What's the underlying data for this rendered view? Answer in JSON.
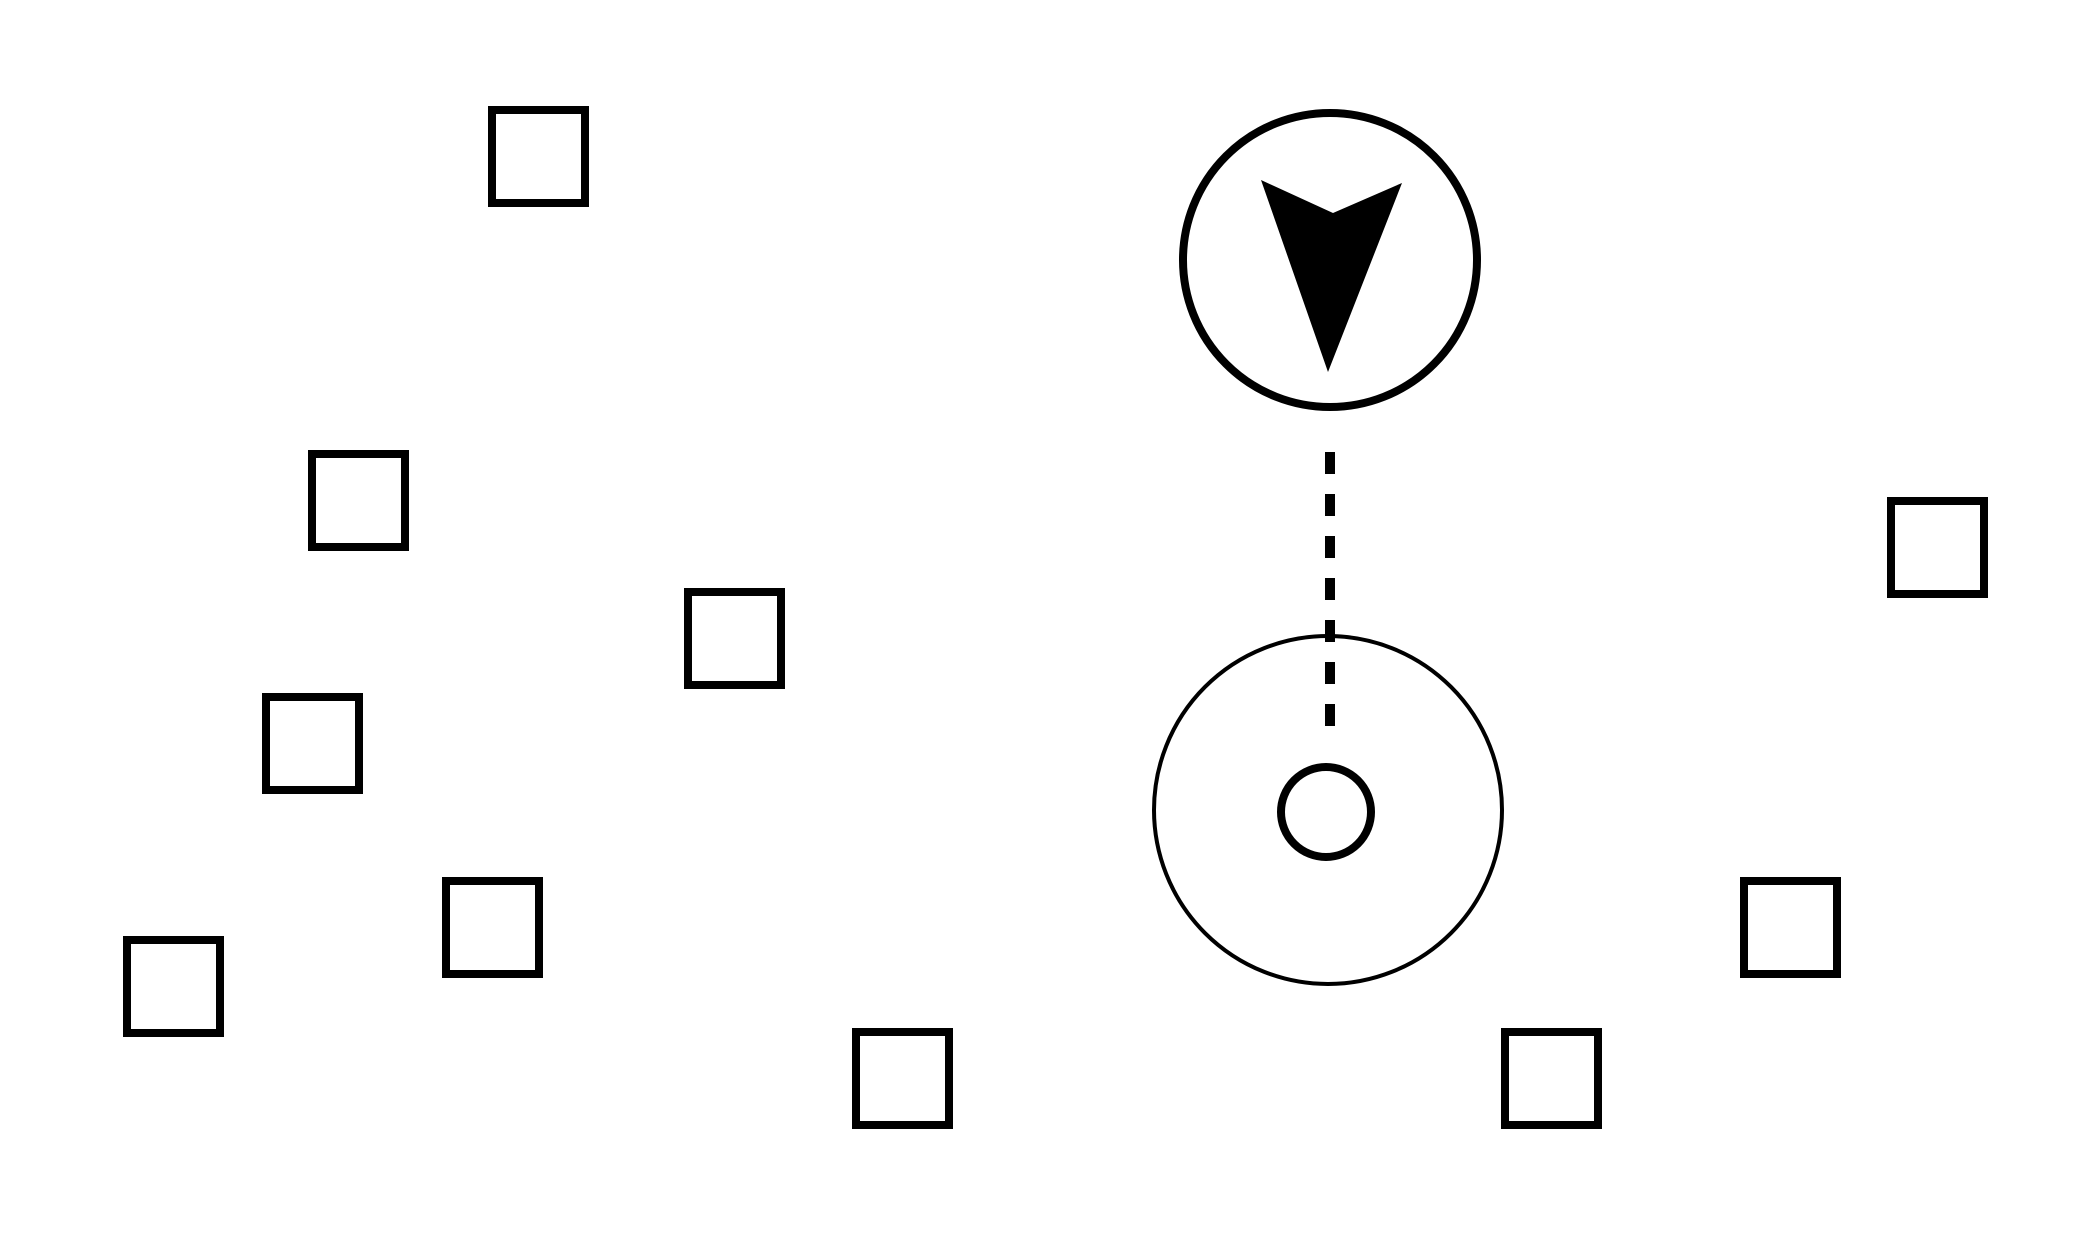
{
  "diagram": {
    "stroke_color": "#000000",
    "background_color": "#ffffff",
    "nodes": [
      {
        "name": "square-marker",
        "shape": "square"
      },
      {
        "name": "square-marker",
        "shape": "square"
      },
      {
        "name": "square-marker",
        "shape": "square"
      },
      {
        "name": "square-marker",
        "shape": "square"
      },
      {
        "name": "square-marker",
        "shape": "square"
      },
      {
        "name": "square-marker",
        "shape": "square"
      },
      {
        "name": "square-marker",
        "shape": "square"
      },
      {
        "name": "square-marker",
        "shape": "square"
      },
      {
        "name": "square-marker",
        "shape": "square"
      },
      {
        "name": "square-marker",
        "shape": "square"
      }
    ],
    "target": {
      "outer_ring": "thin-circle",
      "inner_marker": "small-circle"
    },
    "pointer": {
      "icon": "arrowhead-down-icon",
      "container": "circle"
    },
    "connector": {
      "style": "dashed",
      "from": "pointer",
      "to": "target"
    }
  }
}
